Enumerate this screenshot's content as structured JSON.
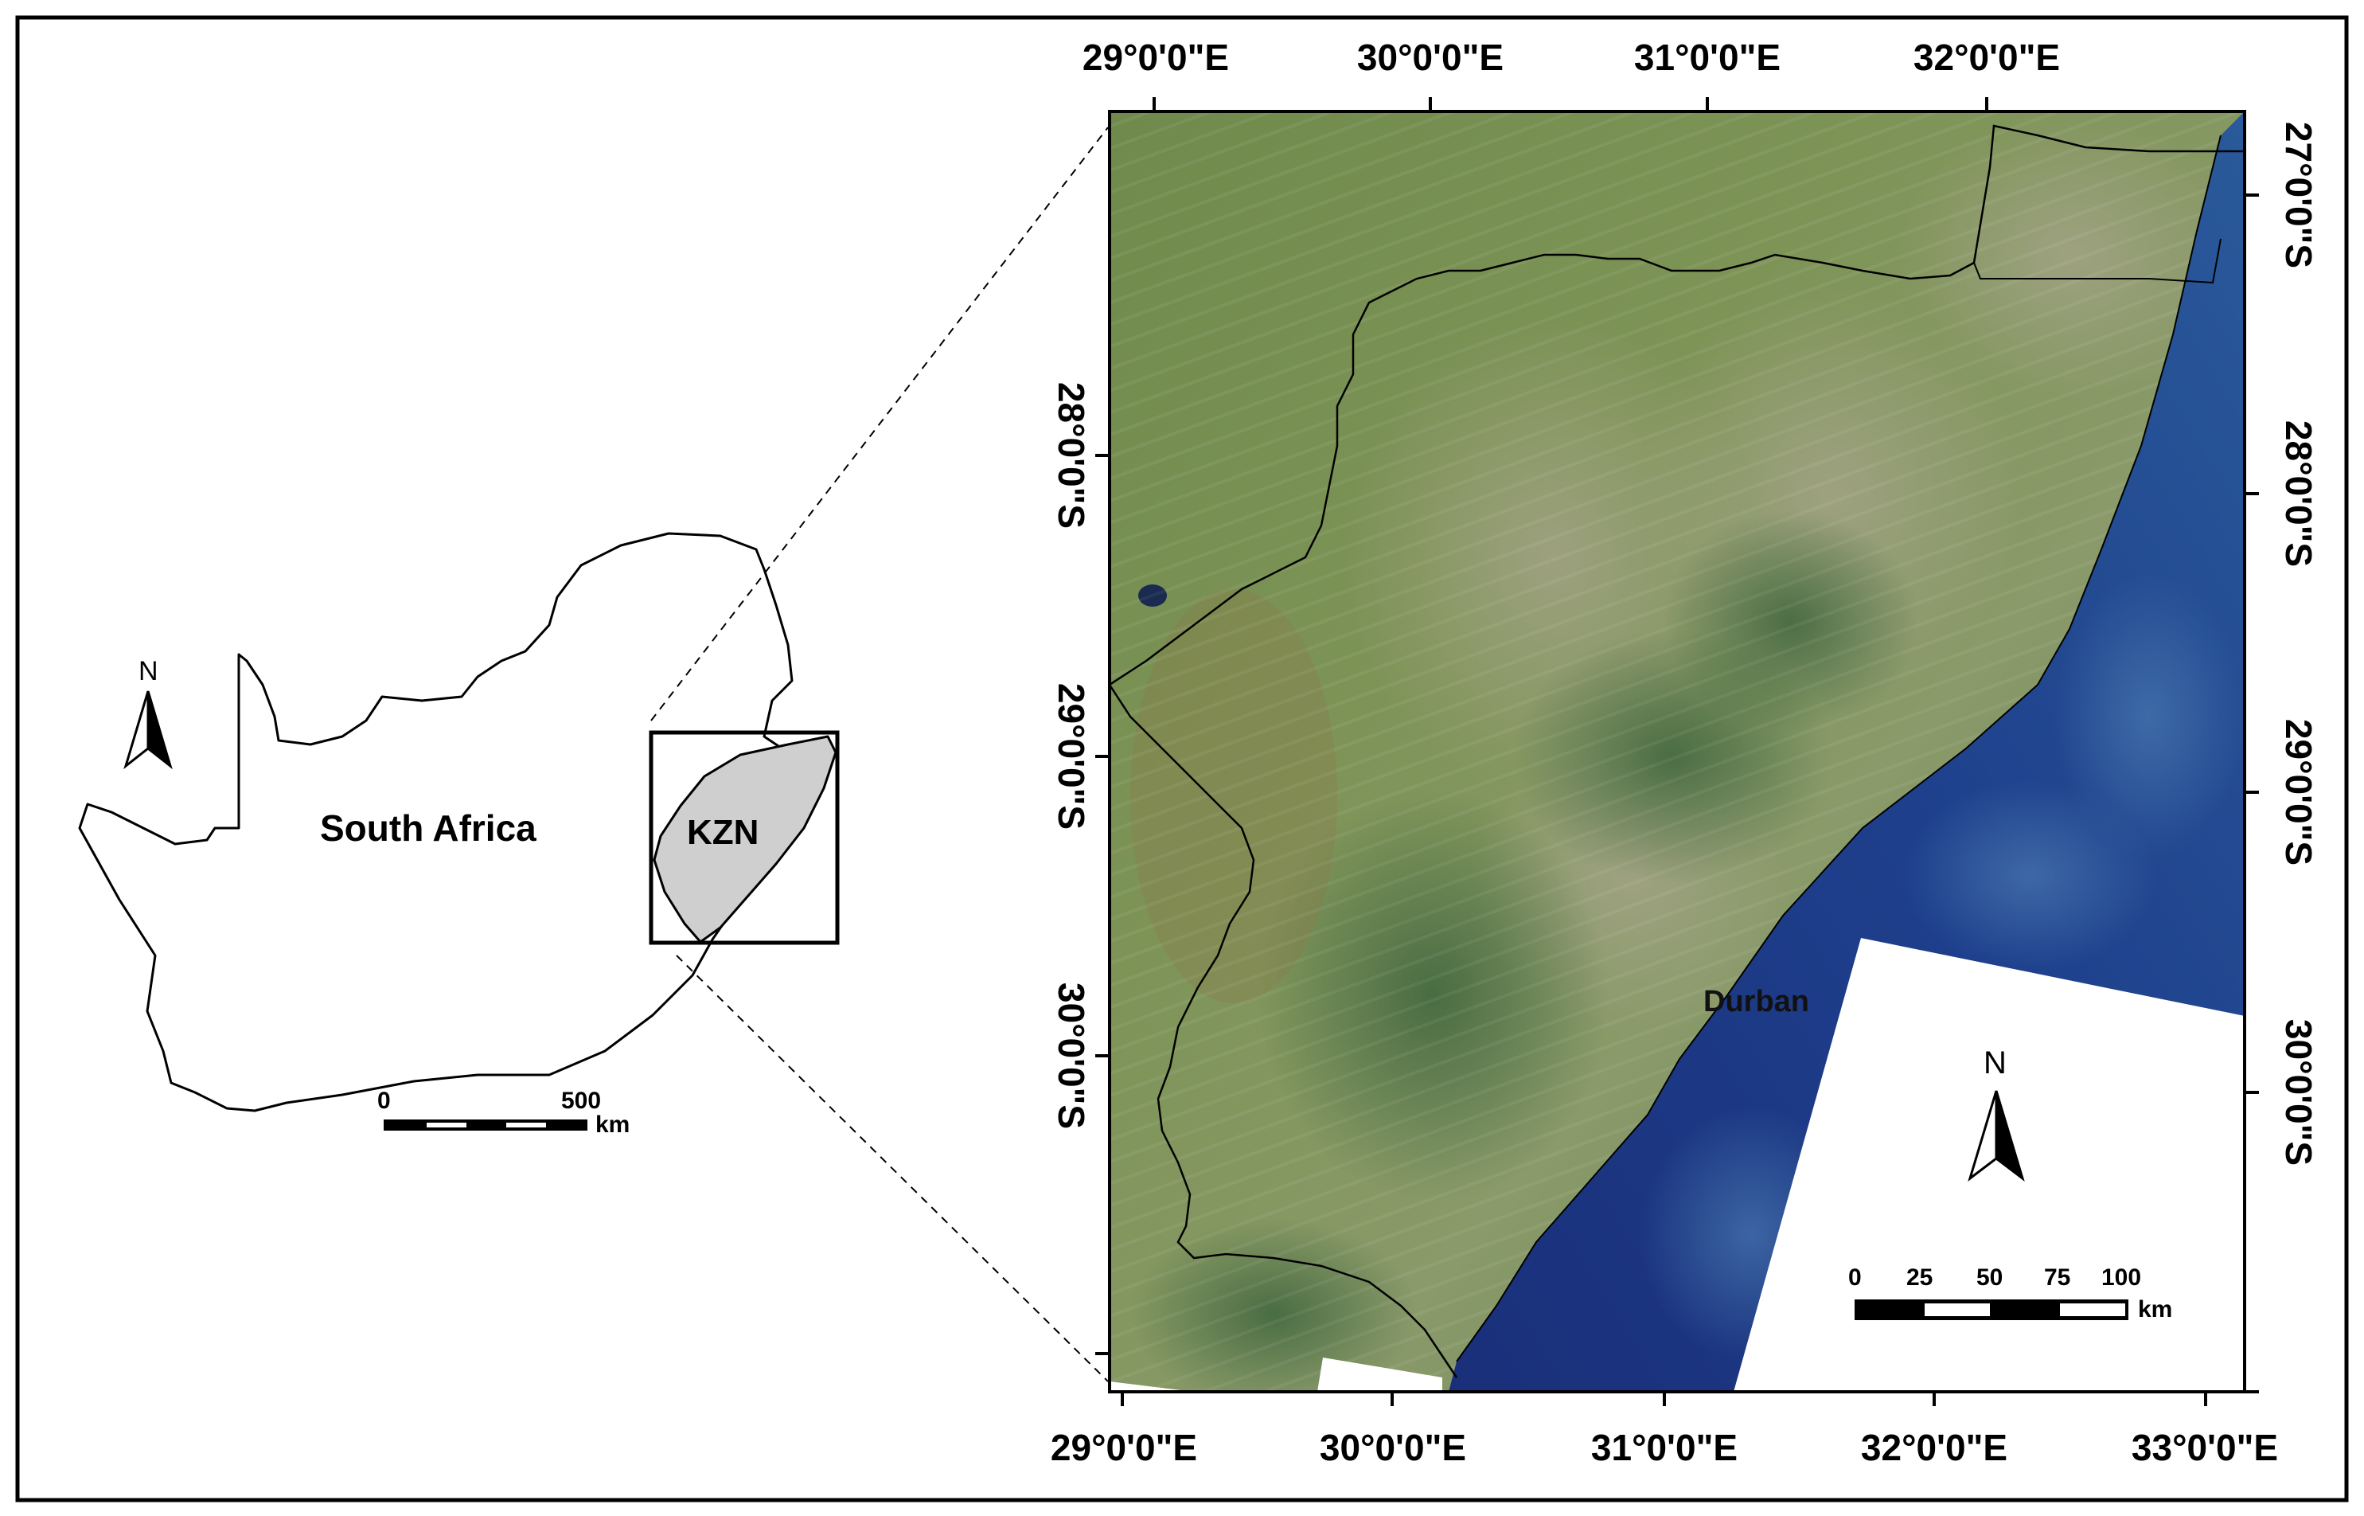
{
  "inset_map": {
    "country_label": "South Africa",
    "province_label": "KZN",
    "north_label": "N",
    "scale": {
      "ticks": [
        "0",
        "500"
      ],
      "unit": "km"
    }
  },
  "main_map": {
    "top_ticks": [
      "29°0'0\"E",
      "30°0'0\"E",
      "31°0'0\"E",
      "32°0'0\"E"
    ],
    "bottom_ticks": [
      "29°0'0\"E",
      "30°0'0\"E",
      "31°0'0\"E",
      "32°0'0\"E",
      "33°0'0\"E"
    ],
    "left_ticks": [
      "28°0'0\"S",
      "29°0'0\"S",
      "30°0'0\"S"
    ],
    "right_ticks": [
      "27°0'0\"S",
      "28°0'0\"S",
      "29°0'0\"S",
      "30°0'0\"S"
    ],
    "city_label": "Durban",
    "north_label": "N",
    "scale": {
      "ticks": [
        "0",
        "25",
        "50",
        "75",
        "100"
      ],
      "unit": "km"
    }
  },
  "colors": {
    "land_green": "#6e8f4a",
    "ocean_blue": "#1f3f8f",
    "kzn_fill": "#cfcfcf"
  }
}
